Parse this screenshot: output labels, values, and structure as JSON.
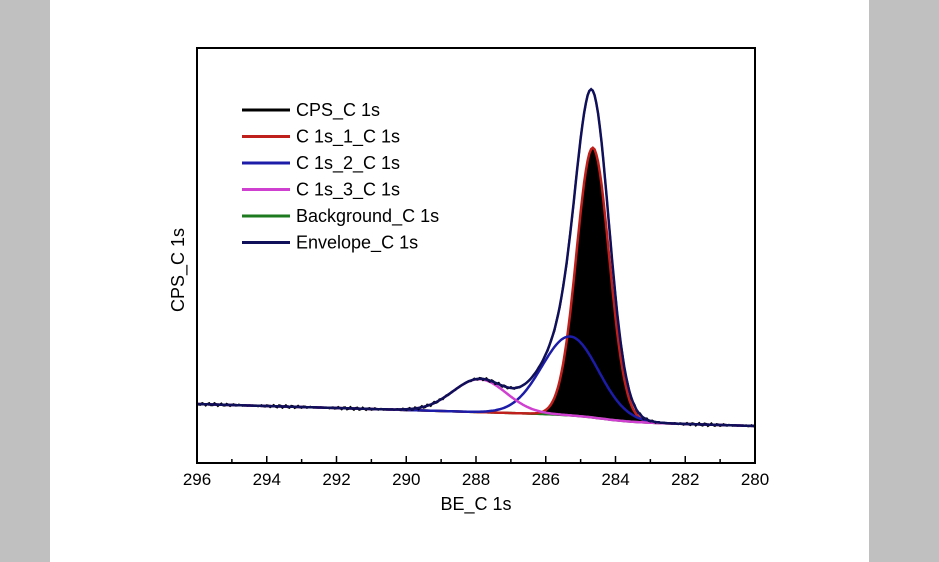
{
  "chart_data": {
    "type": "line",
    "title": "",
    "xlabel": "BE_C 1s",
    "ylabel": "CPS_C 1s",
    "xlim": [
      296,
      280
    ],
    "x_reversed": true,
    "x_ticks": [
      296,
      294,
      292,
      290,
      288,
      286,
      284,
      282,
      280
    ],
    "x_tick_labels": [
      "296",
      "294",
      "292",
      "290",
      "288",
      "286",
      "284",
      "282",
      "280"
    ],
    "y_ticks_visible": false,
    "grid": false,
    "legend_position": "upper-left",
    "legend": [
      {
        "label": "CPS_C 1s",
        "color": "#000000"
      },
      {
        "label": "C 1s_1_C 1s",
        "color": "#c0201c"
      },
      {
        "label": "C 1s_2_C 1s",
        "color": "#1c1ca8"
      },
      {
        "label": "C 1s_3_C 1s",
        "color": "#d040d0"
      },
      {
        "label": "Background_C 1s",
        "color": "#1e7a1e"
      },
      {
        "label": "Envelope_C 1s",
        "color": "#10105a"
      }
    ],
    "series": [
      {
        "name": "CPS_C 1s",
        "role": "measured data",
        "color": "#000000"
      },
      {
        "name": "C 1s_1_C 1s",
        "role": "component (filled black)",
        "center_eV": 284.65,
        "relative_height": 0.82,
        "fwhm_eV": 1.1,
        "color": "#c0201c"
      },
      {
        "name": "C 1s_2_C 1s",
        "role": "component",
        "center_eV": 285.3,
        "relative_height": 0.24,
        "fwhm_eV": 1.9,
        "color": "#1c1ca8"
      },
      {
        "name": "C 1s_3_C 1s",
        "role": "component",
        "center_eV": 287.9,
        "relative_height": 0.1,
        "fwhm_eV": 1.8,
        "color": "#d040d0"
      },
      {
        "name": "Background_C 1s",
        "role": "background",
        "color": "#1e7a1e"
      },
      {
        "name": "Envelope_C 1s",
        "role": "sum of components",
        "peak_eV": 284.7,
        "relative_height": 1.0,
        "color": "#10105a"
      }
    ]
  }
}
